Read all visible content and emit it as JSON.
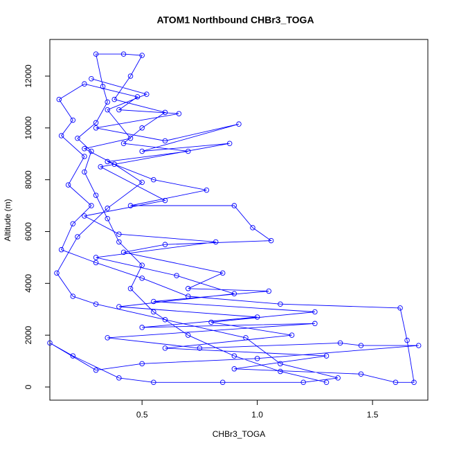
{
  "chart_data": {
    "type": "line",
    "title": "ATOM1 Northbound CHBr3_TOGA",
    "x_label": "CHBr3_TOGA",
    "y_label": "Altitude (m)",
    "color": "#0000ff",
    "xlim": [
      0.1,
      1.74
    ],
    "ylim": [
      -508,
      13415
    ],
    "xticks": [
      0.5,
      {
        "value": 1,
        "label": "1.0"
      },
      1.5
    ],
    "yticks": [
      0,
      2000,
      4000,
      6000,
      8000,
      10000,
      12000
    ],
    "grid": false,
    "x": [
      1.3,
      1.1,
      0.9,
      0.7,
      0.55,
      0.45,
      0.5,
      0.4,
      0.35,
      0.3,
      0.25,
      0.28,
      0.22,
      0.3,
      0.35,
      0.33,
      0.3,
      0.42,
      0.5,
      0.45,
      0.38,
      0.6,
      0.5,
      0.42,
      0.7,
      0.35,
      0.55,
      0.78,
      0.45,
      0.9,
      0.98,
      1.06,
      0.6,
      0.42,
      0.85,
      0.7,
      1.05,
      0.55,
      1.25,
      0.8,
      1.15,
      0.6,
      1.3,
      0.9,
      1.45,
      1.6,
      1.68,
      1.65,
      1.62,
      1.1,
      0.7,
      0.5,
      0.3,
      0.15,
      0.2,
      0.28,
      0.18,
      0.25,
      0.15,
      0.2,
      0.14,
      0.25,
      0.48,
      0.4,
      0.66,
      0.3,
      0.6,
      0.92,
      0.5,
      0.88,
      0.32,
      0.6,
      0.25,
      0.4,
      0.82,
      0.3,
      0.65,
      0.9,
      0.4,
      1.0,
      0.5,
      1.25,
      0.35,
      0.75,
      1.36,
      1.45,
      1.7,
      1.0,
      0.5,
      0.3,
      0.1,
      0.2,
      0.4,
      0.55,
      0.85,
      1.2,
      1.35,
      1.1,
      0.95,
      0.6,
      0.3,
      0.2,
      0.13,
      0.22,
      0.35,
      0.5,
      0.38,
      0.25,
      0.45,
      0.35,
      0.52,
      0.28
    ],
    "values": [
      180,
      600,
      1200,
      2000,
      2900,
      3800,
      4700,
      5600,
      6500,
      7400,
      8300,
      9100,
      9600,
      10200,
      11000,
      11600,
      12850,
      12850,
      12800,
      12000,
      11100,
      10600,
      10000,
      9400,
      9100,
      8700,
      8000,
      7600,
      7000,
      7000,
      6150,
      5650,
      5500,
      5200,
      4400,
      3800,
      3700,
      3300,
      2900,
      2500,
      2000,
      1500,
      1200,
      700,
      500,
      180,
      180,
      1800,
      3050,
      3200,
      3500,
      4200,
      4800,
      5300,
      6300,
      7000,
      7800,
      8900,
      9700,
      10300,
      11100,
      11700,
      11200,
      10700,
      10550,
      10000,
      9500,
      10150,
      9100,
      9400,
      8500,
      7200,
      6600,
      5900,
      5600,
      5000,
      4300,
      3600,
      3100,
      2700,
      2300,
      2450,
      1900,
      1500,
      1700,
      1600,
      1600,
      1100,
      900,
      650,
      1700,
      1200,
      350,
      180,
      180,
      180,
      350,
      900,
      1900,
      2600,
      3200,
      3500,
      4400,
      5800,
      6900,
      7900,
      8600,
      9200,
      9600,
      10700,
      11300,
      11900
    ]
  }
}
